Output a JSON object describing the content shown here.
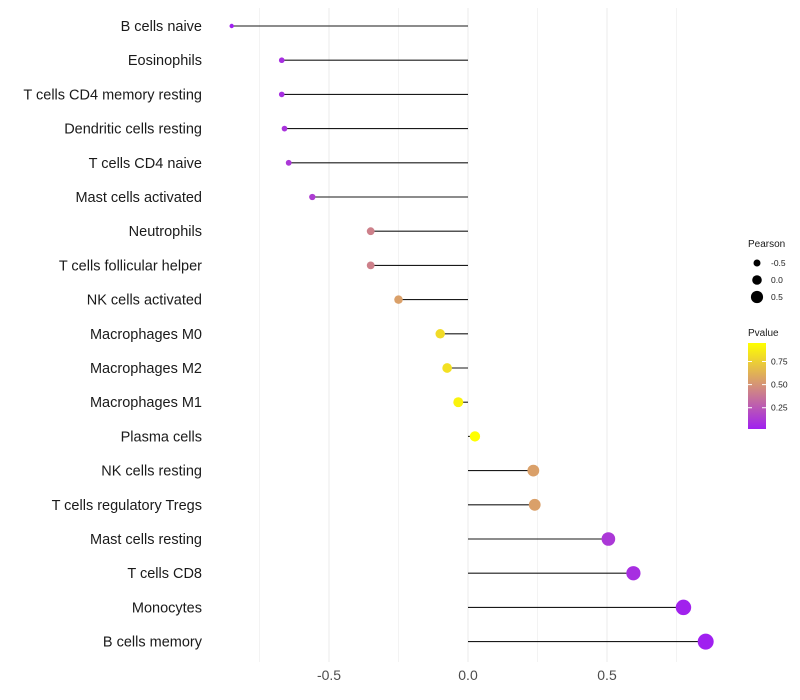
{
  "chart_data": {
    "type": "lollipop",
    "title": "",
    "xlabel": "",
    "ylabel": "",
    "xlim": [
      -1.0,
      0.92
    ],
    "x_ticks": [
      -0.5,
      0.0,
      0.5
    ],
    "x_tick_labels": [
      "-0.5",
      "0.0",
      "0.5"
    ],
    "grid": true,
    "categories": [
      "B cells naive",
      "Eosinophils",
      "T cells CD4 memory resting",
      "Dendritic cells resting",
      "T cells CD4 naive",
      "Mast cells activated",
      "Neutrophils",
      "T cells follicular helper",
      "NK cells activated",
      "Macrophages M0",
      "Macrophages M2",
      "Macrophages M1",
      "Plasma cells",
      "NK cells resting",
      "T cells regulatory  Tregs",
      "Mast cells resting",
      "T cells CD8",
      "Monocytes",
      "B cells memory"
    ],
    "pearson": [
      -0.85,
      -0.67,
      -0.67,
      -0.66,
      -0.645,
      -0.56,
      -0.35,
      -0.35,
      -0.25,
      -0.1,
      -0.075,
      -0.035,
      0.025,
      0.235,
      0.24,
      0.505,
      0.595,
      0.775,
      0.855
    ],
    "pvalue": [
      0.02,
      0.08,
      0.08,
      0.1,
      0.12,
      0.14,
      0.42,
      0.42,
      0.55,
      0.8,
      0.82,
      0.9,
      0.95,
      0.55,
      0.55,
      0.12,
      0.08,
      0.03,
      0.02
    ],
    "legend": {
      "size_title": "Pearson",
      "size_values": [
        -0.5,
        0.0,
        0.5
      ],
      "size_labels": [
        "-0.5",
        "0.0",
        "0.5"
      ],
      "color_title": "Pvalue",
      "color_ticks": [
        0.75,
        0.5,
        0.25
      ],
      "color_labels": [
        "0.75",
        "0.50",
        "0.25"
      ],
      "color_range": [
        0.02,
        0.95
      ],
      "color_low": "#a020f0",
      "color_high": "#ffff00",
      "position": "right"
    }
  }
}
